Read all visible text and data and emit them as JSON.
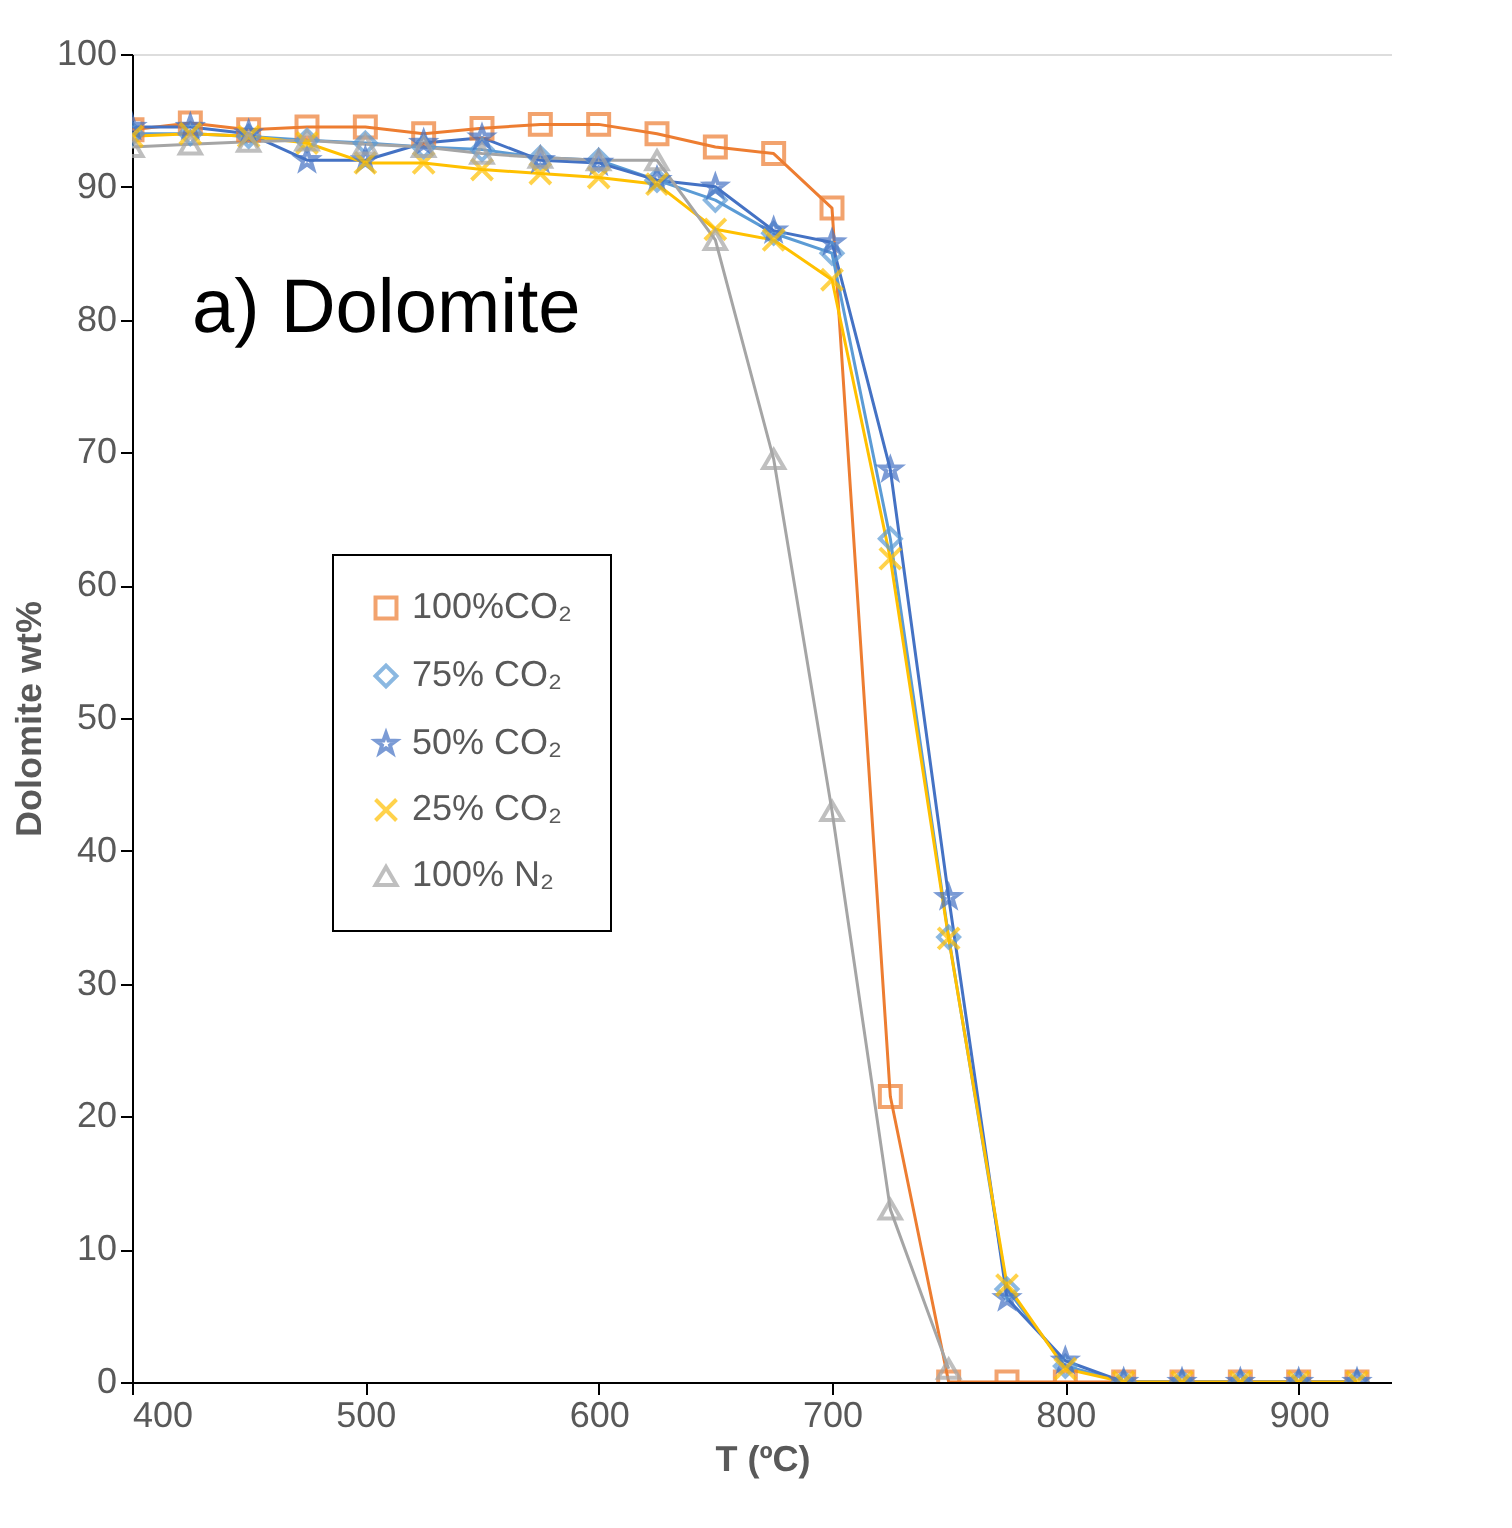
{
  "chart_data": {
    "type": "line",
    "xlabel": "T (ºC)",
    "ylabel": "Dolomite wt%",
    "annotations": [
      "a) Dolomite"
    ],
    "x": [
      400,
      425,
      450,
      475,
      500,
      525,
      550,
      575,
      600,
      625,
      650,
      675,
      700,
      725,
      750,
      775,
      800,
      825,
      850,
      875,
      900,
      925
    ],
    "xlim": [
      400,
      940
    ],
    "xticks": [
      400,
      500,
      600,
      700,
      800,
      900
    ],
    "ylim": [
      0,
      100
    ],
    "yticks": [
      0,
      10,
      20,
      30,
      40,
      50,
      60,
      70,
      80,
      90,
      100
    ],
    "grid": false,
    "legend": "left",
    "series": [
      {
        "name": "100%CO₂",
        "color": "#ed7d31",
        "marker": "square",
        "values": [
          94.3,
          94.8,
          94.3,
          94.5,
          94.5,
          94.0,
          94.4,
          94.7,
          94.7,
          94.0,
          93.0,
          92.5,
          88.4,
          21.5,
          0,
          0,
          0,
          0,
          0,
          0,
          0,
          0
        ]
      },
      {
        "name": "75% CO₂",
        "color": "#5b9bd5",
        "marker": "diamond",
        "values": [
          94.0,
          94.0,
          93.8,
          93.5,
          93.3,
          93.0,
          92.8,
          92.2,
          92.0,
          90.5,
          89.0,
          86.5,
          85.0,
          63.5,
          33.5,
          7.0,
          1.2,
          0,
          0,
          0,
          0,
          0
        ]
      },
      {
        "name": "50% CO₂",
        "color": "#4472c4",
        "marker": "star",
        "values": [
          94.5,
          94.5,
          94.0,
          92.0,
          92.0,
          93.3,
          93.7,
          92.0,
          91.8,
          90.5,
          90.0,
          86.7,
          85.8,
          68.7,
          36.5,
          6.3,
          1.6,
          0,
          0,
          0,
          0,
          0
        ]
      },
      {
        "name": "25% CO₂",
        "color": "#ffc000",
        "marker": "cross",
        "values": [
          93.8,
          94.0,
          93.8,
          93.3,
          91.8,
          91.8,
          91.3,
          91.0,
          90.7,
          90.2,
          86.8,
          86.0,
          83.0,
          62.0,
          33.4,
          7.3,
          1.0,
          0,
          0,
          0,
          0,
          0
        ]
      },
      {
        "name": "100% N₂",
        "color": "#a5a5a5",
        "marker": "triangle",
        "x": [
          400,
          425,
          450,
          475,
          500,
          525,
          550,
          575,
          600,
          625,
          650,
          675,
          700,
          725,
          750
        ],
        "values": [
          93.0,
          93.2,
          93.4,
          93.5,
          93.2,
          93.0,
          92.5,
          92.2,
          92.0,
          92.0,
          86.0,
          69.5,
          43.0,
          13.0,
          1.0
        ]
      }
    ]
  }
}
